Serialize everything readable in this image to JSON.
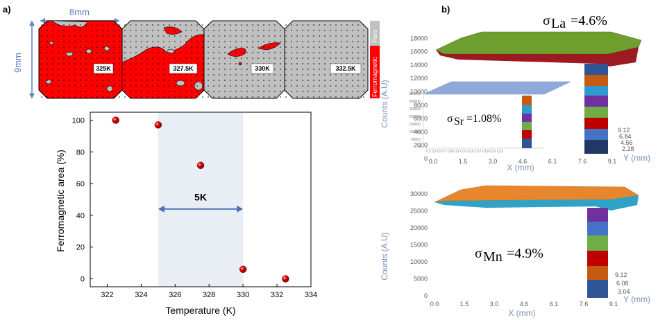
{
  "panel_a": {
    "label": "a)",
    "width_label": "8mm",
    "height_label": "9mm",
    "tiles": [
      {
        "label": "325K"
      },
      {
        "label": "327.5K"
      },
      {
        "label": "330K"
      },
      {
        "label": "332.5K"
      }
    ],
    "legend": {
      "para": "Para",
      "ferro": "Ferromagnetic",
      "para_color": "#c0c0c0",
      "ferro_color": "#ff0000"
    }
  },
  "chart_data": [
    {
      "type": "scatter",
      "xlabel": "Temperature (K)",
      "ylabel": "Ferromagnetic area (%)",
      "xlim": [
        321,
        334
      ],
      "ylim": [
        -5,
        105
      ],
      "xticks": [
        "322",
        "324",
        "326",
        "328",
        "330",
        "332",
        "334"
      ],
      "yticks": [
        "0",
        "20",
        "40",
        "60",
        "80",
        "100"
      ],
      "x": [
        322.5,
        325,
        327.5,
        330,
        332.5
      ],
      "y": [
        100,
        97,
        71.5,
        6,
        0
      ],
      "shaded_range": [
        325,
        330
      ],
      "shaded_label": "5K",
      "marker_color": "#e00000"
    },
    {
      "type": "surface3d",
      "panel_label": "b)",
      "ylabel": "Counts (A.U)",
      "xlabel": "X (mm)",
      "zlabel": "Y (mm)",
      "yticks": [
        "0",
        "2000",
        "4000",
        "6000",
        "8000",
        "10000",
        "12000",
        "14000",
        "16000",
        "18000"
      ],
      "xticks": [
        "0.0",
        "1.5",
        "3.0",
        "4.6",
        "6.1",
        "7.6",
        "9.1"
      ],
      "zticks": [
        "2.28",
        "4.56",
        "6.84",
        "9.12"
      ],
      "annotation_main": "La",
      "annotation_main_value": "=4.6%",
      "annotation_inset": "Sr",
      "annotation_inset_value": "=1.08%",
      "inset_yticks": [
        "0",
        "50000",
        "100000",
        "150000",
        "200000",
        "250000",
        "300000",
        "350000"
      ]
    },
    {
      "type": "surface3d",
      "ylabel": "Counts (A.U)",
      "xlabel": "X (mm)",
      "zlabel": "Y (mm)",
      "yticks": [
        "0",
        "5000",
        "10000",
        "15000",
        "20000",
        "25000",
        "30000"
      ],
      "xticks": [
        "0.0",
        "1.5",
        "3.0",
        "4.6",
        "6.1",
        "7.6",
        "9.1"
      ],
      "zticks": [
        "3.04",
        "6.08",
        "9.12"
      ],
      "annotation_main": "Mn",
      "annotation_main_value": "=4.9%"
    }
  ]
}
